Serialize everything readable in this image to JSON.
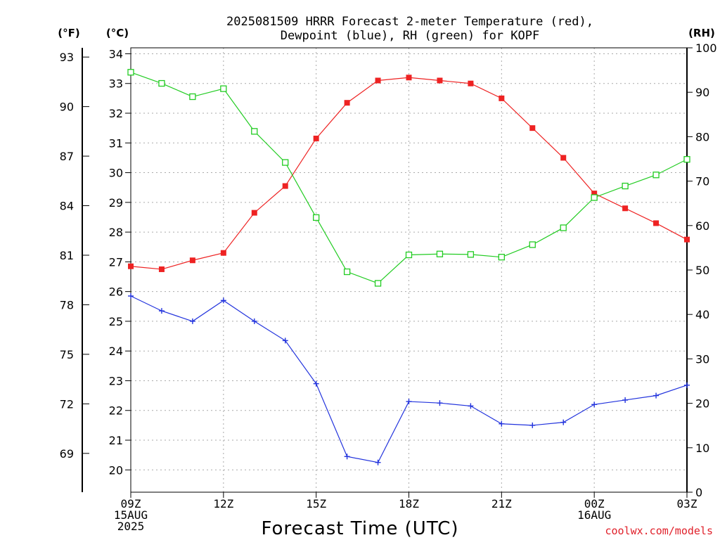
{
  "chart_data": {
    "type": "line",
    "title_line1": "2025081509 HRRR Forecast 2-meter Temperature (red),",
    "title_line2": "Dewpoint (blue), RH (green) for KOPF",
    "xlabel": "Forecast Time (UTC)",
    "credit": "coolwx.com/models",
    "units": {
      "fahrenheit": "(°F)",
      "celsius": "(°C)",
      "rh": "(RH)"
    },
    "x_hours": [
      0,
      1,
      2,
      3,
      4,
      5,
      6,
      7,
      8,
      9,
      10,
      11,
      12,
      13,
      14,
      15,
      16,
      17,
      18
    ],
    "x_tick_labels": [
      {
        "hour": 0,
        "lines": [
          "09Z",
          "15AUG",
          "2025"
        ]
      },
      {
        "hour": 3,
        "lines": [
          "12Z"
        ]
      },
      {
        "hour": 6,
        "lines": [
          "15Z"
        ]
      },
      {
        "hour": 9,
        "lines": [
          "18Z"
        ]
      },
      {
        "hour": 12,
        "lines": [
          "21Z"
        ]
      },
      {
        "hour": 15,
        "lines": [
          "00Z",
          "16AUG"
        ]
      },
      {
        "hour": 18,
        "lines": [
          "03Z"
        ]
      }
    ],
    "celsius_axis": {
      "range": [
        19.25,
        34.2
      ],
      "ticks": [
        20,
        21,
        22,
        23,
        24,
        25,
        26,
        27,
        28,
        29,
        30,
        31,
        32,
        33,
        34
      ]
    },
    "fahrenheit_ticks": [
      69,
      72,
      75,
      78,
      81,
      84,
      87,
      90,
      93
    ],
    "rh_axis": {
      "range": [
        0,
        100
      ],
      "ticks": [
        0,
        10,
        20,
        30,
        40,
        50,
        60,
        70,
        80,
        90,
        100
      ]
    },
    "series": [
      {
        "name": "Temperature (red)",
        "axis": "celsius",
        "color": "#ee2222",
        "marker": "filled-square",
        "values": [
          26.85,
          26.75,
          27.05,
          27.3,
          28.65,
          29.55,
          31.15,
          32.35,
          33.1,
          33.2,
          33.1,
          33.0,
          32.5,
          31.5,
          30.5,
          29.3,
          28.8,
          28.3,
          27.75
        ]
      },
      {
        "name": "Dewpoint (blue)",
        "axis": "celsius",
        "color": "#2233dd",
        "marker": "plus",
        "values": [
          25.85,
          25.35,
          25.0,
          25.7,
          25.0,
          24.35,
          22.9,
          20.45,
          20.25,
          22.3,
          22.25,
          22.15,
          21.55,
          21.5,
          21.6,
          22.2,
          22.35,
          22.5,
          22.85
        ]
      },
      {
        "name": "RH (green)",
        "axis": "rh",
        "color": "#22cc22",
        "marker": "open-square",
        "values": [
          94.5,
          92.0,
          89.0,
          90.8,
          81.2,
          74.2,
          61.8,
          49.6,
          47.0,
          53.4,
          53.6,
          53.5,
          52.9,
          55.7,
          59.5,
          66.3,
          68.9,
          71.4,
          74.9
        ]
      }
    ]
  }
}
